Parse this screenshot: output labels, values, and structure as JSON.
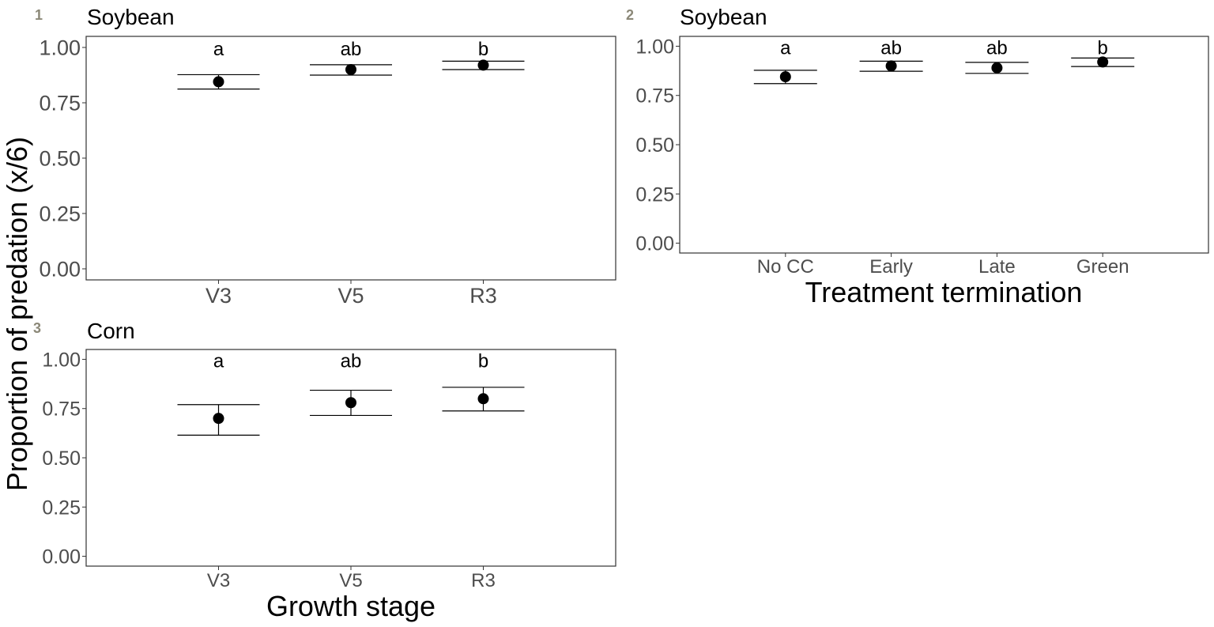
{
  "ylabel": "Proportion of predation (x/6)",
  "chart_data": [
    {
      "panel": "1",
      "type": "scatter",
      "title": "Soybean",
      "xlabel": "",
      "categories": [
        "V3",
        "V5",
        "R3"
      ],
      "values": [
        0.845,
        0.9,
        0.92
      ],
      "lower": [
        0.812,
        0.875,
        0.9
      ],
      "upper": [
        0.877,
        0.922,
        0.938
      ],
      "letters": [
        "a",
        "ab",
        "b"
      ],
      "ylim": [
        -0.05,
        1.05
      ],
      "yticks": [
        "0.00",
        "0.25",
        "0.50",
        "0.75",
        "1.00"
      ]
    },
    {
      "panel": "2",
      "type": "scatter",
      "title": "Soybean",
      "xlabel": "Treatment termination",
      "categories": [
        "No CC",
        "Early",
        "Late",
        "Green"
      ],
      "values": [
        0.845,
        0.9,
        0.89,
        0.92
      ],
      "lower": [
        0.81,
        0.873,
        0.862,
        0.897
      ],
      "upper": [
        0.878,
        0.924,
        0.918,
        0.94
      ],
      "letters": [
        "a",
        "ab",
        "ab",
        "b"
      ],
      "ylim": [
        -0.05,
        1.05
      ],
      "yticks": [
        "0.00",
        "0.25",
        "0.50",
        "0.75",
        "1.00"
      ]
    },
    {
      "panel": "3",
      "type": "scatter",
      "title": "Corn",
      "xlabel": "Growth stage",
      "categories": [
        "V3",
        "V5",
        "R3"
      ],
      "values": [
        0.7,
        0.78,
        0.8
      ],
      "lower": [
        0.615,
        0.715,
        0.738
      ],
      "upper": [
        0.77,
        0.843,
        0.858
      ],
      "letters": [
        "a",
        "ab",
        "b"
      ],
      "ylim": [
        -0.05,
        1.05
      ],
      "yticks": [
        "0.00",
        "0.25",
        "0.50",
        "0.75",
        "1.00"
      ]
    }
  ]
}
